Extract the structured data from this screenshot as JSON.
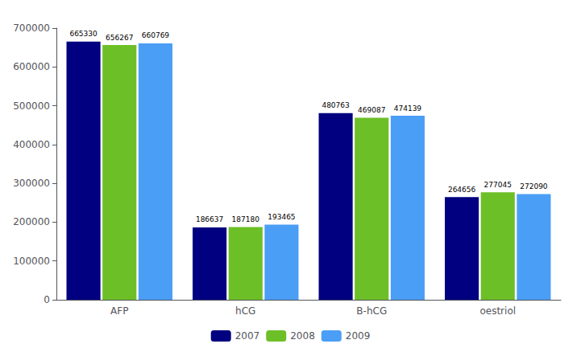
{
  "chart_data": {
    "type": "bar",
    "categories": [
      "AFP",
      "hCG",
      "B-hCG",
      "oestriol"
    ],
    "series": [
      {
        "name": "2007",
        "color": "#000080",
        "values": [
          665330,
          186637,
          480763,
          264656
        ]
      },
      {
        "name": "2008",
        "color": "#6DBF28",
        "values": [
          656267,
          187180,
          469087,
          277045
        ]
      },
      {
        "name": "2009",
        "color": "#4B9EF5",
        "values": [
          660769,
          193465,
          474139,
          272090
        ]
      }
    ],
    "ylim": [
      0,
      700000
    ],
    "yticks": [
      0,
      100000,
      200000,
      300000,
      400000,
      500000,
      600000,
      700000
    ],
    "grid": false,
    "legend": "bottom",
    "data_labels": true
  }
}
